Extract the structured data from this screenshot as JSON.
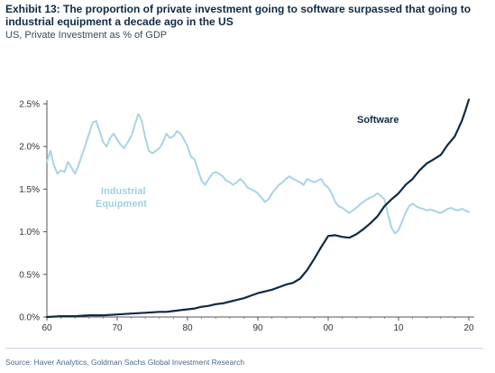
{
  "header": {
    "title": "Exhibit 13: The proportion of private investment going to software surpassed that going to industrial equipment a decade ago in the US",
    "subtitle": "US, Private Investment as % of GDP"
  },
  "footer": {
    "source": "Source: Haver Analytics, Goldman Sachs Global Investment Research"
  },
  "colors": {
    "software": "#0f2a44",
    "industrial": "#a8d4e4",
    "axis": "#333333"
  },
  "chart_data": {
    "type": "line",
    "title": "Exhibit 13: The proportion of private investment going to software surpassed that going to industrial equipment a decade ago in the US",
    "subtitle": "US, Private Investment as % of GDP",
    "xlabel": "",
    "ylabel": "",
    "xlim": [
      1960,
      2020
    ],
    "ylim": [
      0.0,
      2.5
    ],
    "grid": false,
    "x_tick_values": [
      1960,
      1970,
      1980,
      1990,
      2000,
      2010,
      2020
    ],
    "x_tick_labels": [
      "60",
      "70",
      "80",
      "90",
      "00",
      "10",
      "20"
    ],
    "y_tick_values": [
      0.0,
      0.5,
      1.0,
      1.5,
      2.0,
      2.5
    ],
    "y_tick_labels": [
      "0.0%",
      "0.5%",
      "1.0%",
      "1.5%",
      "2.0%",
      "2.5%"
    ],
    "annotations": [
      {
        "text_line1": "Industrial",
        "text_line2": "Equipment",
        "series": "Industrial Equipment"
      },
      {
        "text_line1": "Software",
        "text_line2": "",
        "series": "Software"
      }
    ],
    "series": [
      {
        "name": "Industrial Equipment",
        "color": "#a8d4e4",
        "x": [
          1960,
          1960.5,
          1961,
          1961.5,
          1962,
          1962.5,
          1963,
          1963.5,
          1964,
          1964.5,
          1965,
          1965.5,
          1966,
          1966.5,
          1967,
          1967.5,
          1968,
          1968.5,
          1969,
          1969.5,
          1970,
          1970.5,
          1971,
          1971.5,
          1972,
          1972.5,
          1973,
          1973.5,
          1974,
          1974.5,
          1975,
          1975.5,
          1976,
          1976.5,
          1977,
          1977.5,
          1978,
          1978.5,
          1979,
          1979.5,
          1980,
          1980.5,
          1981,
          1981.5,
          1982,
          1982.5,
          1983,
          1983.5,
          1984,
          1984.5,
          1985,
          1985.5,
          1986,
          1986.5,
          1987,
          1987.5,
          1988,
          1988.5,
          1989,
          1989.5,
          1990,
          1990.5,
          1991,
          1991.5,
          1992,
          1992.5,
          1993,
          1993.5,
          1994,
          1994.5,
          1995,
          1995.5,
          1996,
          1996.5,
          1997,
          1997.5,
          1998,
          1998.5,
          1999,
          1999.5,
          2000,
          2000.5,
          2001,
          2001.5,
          2002,
          2002.5,
          2003,
          2003.5,
          2004,
          2004.5,
          2005,
          2005.5,
          2006,
          2006.5,
          2007,
          2007.5,
          2008,
          2008.5,
          2009,
          2009.5,
          2010,
          2010.5,
          2011,
          2011.5,
          2012,
          2012.5,
          2013,
          2013.5,
          2014,
          2014.5,
          2015,
          2015.5,
          2016,
          2016.5,
          2017,
          2017.5,
          2018,
          2018.5,
          2019,
          2019.5,
          2020
        ],
        "values": [
          1.82,
          1.95,
          1.78,
          1.68,
          1.72,
          1.7,
          1.82,
          1.75,
          1.68,
          1.78,
          1.9,
          2.02,
          2.15,
          2.28,
          2.3,
          2.18,
          2.05,
          2.0,
          2.1,
          2.15,
          2.08,
          2.02,
          1.98,
          2.05,
          2.12,
          2.25,
          2.38,
          2.3,
          2.1,
          1.95,
          1.92,
          1.95,
          1.98,
          2.05,
          2.15,
          2.1,
          2.12,
          2.18,
          2.15,
          2.08,
          2.0,
          1.88,
          1.85,
          1.72,
          1.6,
          1.55,
          1.62,
          1.68,
          1.7,
          1.68,
          1.65,
          1.6,
          1.58,
          1.55,
          1.58,
          1.62,
          1.58,
          1.52,
          1.5,
          1.48,
          1.45,
          1.4,
          1.35,
          1.38,
          1.45,
          1.5,
          1.55,
          1.58,
          1.62,
          1.65,
          1.62,
          1.6,
          1.58,
          1.55,
          1.62,
          1.6,
          1.58,
          1.6,
          1.62,
          1.55,
          1.52,
          1.45,
          1.35,
          1.3,
          1.28,
          1.25,
          1.22,
          1.25,
          1.28,
          1.32,
          1.35,
          1.38,
          1.4,
          1.42,
          1.45,
          1.42,
          1.38,
          1.2,
          1.05,
          0.98,
          1.02,
          1.12,
          1.22,
          1.3,
          1.33,
          1.3,
          1.28,
          1.27,
          1.25,
          1.26,
          1.25,
          1.23,
          1.22,
          1.24,
          1.27,
          1.28,
          1.26,
          1.25,
          1.27,
          1.25,
          1.23
        ]
      },
      {
        "name": "Software",
        "color": "#0f2a44",
        "x": [
          1960,
          1962,
          1964,
          1966,
          1968,
          1970,
          1972,
          1974,
          1976,
          1977,
          1978,
          1979,
          1980,
          1981,
          1982,
          1983,
          1984,
          1985,
          1986,
          1987,
          1988,
          1989,
          1990,
          1991,
          1992,
          1993,
          1994,
          1995,
          1996,
          1997,
          1998,
          1999,
          2000,
          2001,
          2002,
          2003,
          2004,
          2005,
          2006,
          2007,
          2008,
          2009,
          2010,
          2011,
          2012,
          2013,
          2014,
          2015,
          2016,
          2017,
          2018,
          2019,
          2019.5,
          2020
        ],
        "values": [
          0.0,
          0.01,
          0.01,
          0.02,
          0.02,
          0.03,
          0.04,
          0.05,
          0.06,
          0.06,
          0.07,
          0.08,
          0.09,
          0.1,
          0.12,
          0.13,
          0.15,
          0.16,
          0.18,
          0.2,
          0.22,
          0.25,
          0.28,
          0.3,
          0.32,
          0.35,
          0.38,
          0.4,
          0.45,
          0.55,
          0.68,
          0.82,
          0.95,
          0.96,
          0.94,
          0.93,
          0.97,
          1.03,
          1.1,
          1.18,
          1.3,
          1.38,
          1.45,
          1.55,
          1.62,
          1.72,
          1.8,
          1.85,
          1.9,
          2.02,
          2.12,
          2.3,
          2.42,
          2.55
        ]
      }
    ]
  }
}
